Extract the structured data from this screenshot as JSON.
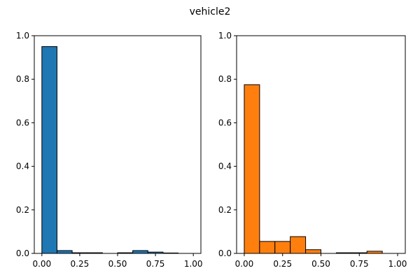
{
  "figure": {
    "title": "vehicle2"
  },
  "chart_data": [
    {
      "type": "bar",
      "panel": "left",
      "color": "#1f77b4",
      "bin_edges": [
        0,
        0.1,
        0.2,
        0.3,
        0.4,
        0.5,
        0.6,
        0.7,
        0.8,
        0.9,
        1.0
      ],
      "values": [
        0.95,
        0.013,
        0.003,
        0.003,
        0.0,
        0.003,
        0.013,
        0.006,
        0.002,
        0.0
      ],
      "xlim": [
        -0.05,
        1.05
      ],
      "ylim": [
        0,
        1.0
      ],
      "xticks": [
        0,
        0.25,
        0.5,
        0.75,
        1.0
      ],
      "xtick_labels": [
        "0.00",
        "0.25",
        "0.50",
        "0.75",
        "1.00"
      ],
      "yticks": [
        0,
        0.2,
        0.4,
        0.6,
        0.8,
        1.0
      ],
      "ytick_labels": [
        "0.0",
        "0.2",
        "0.4",
        "0.6",
        "0.8",
        "1.0"
      ],
      "grid": false
    },
    {
      "type": "bar",
      "panel": "right",
      "color": "#ff7f0e",
      "bin_edges": [
        0,
        0.1,
        0.2,
        0.3,
        0.4,
        0.5,
        0.6,
        0.7,
        0.8,
        0.9,
        1.0
      ],
      "values": [
        0.775,
        0.055,
        0.055,
        0.077,
        0.017,
        0.0,
        0.003,
        0.003,
        0.01,
        0.0
      ],
      "xlim": [
        -0.05,
        1.05
      ],
      "ylim": [
        0,
        1.0
      ],
      "xticks": [
        0,
        0.25,
        0.5,
        0.75,
        1.0
      ],
      "xtick_labels": [
        "0.00",
        "0.25",
        "0.50",
        "0.75",
        "1.00"
      ],
      "yticks": [
        0,
        0.2,
        0.4,
        0.6,
        0.8,
        1.0
      ],
      "ytick_labels": [
        "0.0",
        "0.2",
        "0.4",
        "0.6",
        "0.8",
        "1.0"
      ],
      "grid": false
    }
  ]
}
